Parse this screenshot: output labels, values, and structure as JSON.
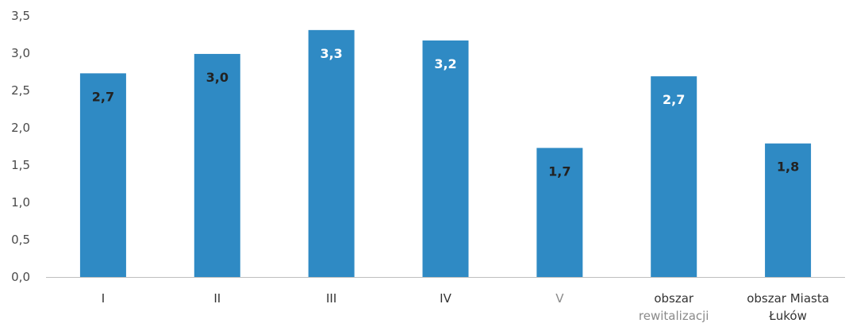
{
  "chart_data": {
    "type": "bar",
    "title": "",
    "xlabel": "",
    "ylabel": "",
    "ylim": [
      0,
      3.5
    ],
    "yticks": [
      "0,0",
      "0,5",
      "1,0",
      "1,5",
      "2,0",
      "2,5",
      "3,0",
      "3,5"
    ],
    "grid": false,
    "bar_color": "#2f8ac4",
    "categories": [
      [
        "I"
      ],
      [
        "II"
      ],
      [
        "III"
      ],
      [
        "IV"
      ],
      [
        "V"
      ],
      [
        "obszar",
        "rewitalizacji"
      ],
      [
        "obszar Miasta",
        "Łuków"
      ]
    ],
    "values": [
      2.73,
      2.99,
      3.31,
      3.17,
      1.73,
      2.69,
      1.79
    ],
    "data_labels": [
      "2,7",
      "3,0",
      "3,3",
      "3,2",
      "1,7",
      "2,7",
      "1,8"
    ],
    "data_label_colors": [
      "#222222",
      "#222222",
      "#ffffff",
      "#ffffff",
      "#222222",
      "#ffffff",
      "#222222"
    ]
  }
}
